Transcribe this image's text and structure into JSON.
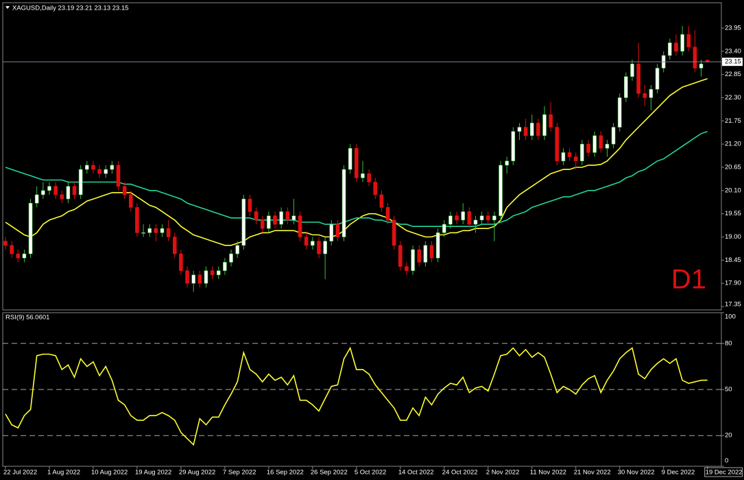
{
  "chart_data": [
    {
      "type": "candlestick",
      "title": "XAGUSD,Daily  23.19 23.21 23.13 23.15",
      "watermark": "D1",
      "x": [
        "22 Jul 2022",
        null,
        null,
        null,
        null,
        null,
        null,
        "1 Aug 2022",
        null,
        null,
        null,
        null,
        null,
        null,
        "10 Aug 2022",
        null,
        null,
        null,
        null,
        null,
        null,
        "19 Aug 2022",
        null,
        null,
        null,
        null,
        null,
        null,
        "29 Aug 2022",
        null,
        null,
        null,
        null,
        null,
        null,
        "7 Sep 2022",
        null,
        null,
        null,
        null,
        null,
        null,
        "16 Sep 2022",
        null,
        null,
        null,
        null,
        null,
        null,
        "26 Sep 2022",
        null,
        null,
        null,
        null,
        null,
        null,
        "5 Oct 2022",
        null,
        null,
        null,
        null,
        null,
        null,
        "14 Oct 2022",
        null,
        null,
        null,
        null,
        null,
        null,
        "24 Oct 2022",
        null,
        null,
        null,
        null,
        null,
        null,
        "2 Nov 2022",
        null,
        null,
        null,
        null,
        null,
        null,
        "11 Nov 2022",
        null,
        null,
        null,
        null,
        null,
        null,
        "21 Nov 2022",
        null,
        null,
        null,
        null,
        null,
        null,
        "30 Nov 2022",
        null,
        null,
        null,
        null,
        null,
        null,
        "9 Dec 2022",
        null,
        null,
        null,
        null,
        null,
        null,
        "19 Dec 2022"
      ],
      "ohlc": [
        [
          18.9,
          19.0,
          18.7,
          18.8
        ],
        [
          18.8,
          18.9,
          18.5,
          18.6
        ],
        [
          18.6,
          18.7,
          18.4,
          18.5
        ],
        [
          18.5,
          18.7,
          18.4,
          18.6
        ],
        [
          18.6,
          19.9,
          18.5,
          19.8
        ],
        [
          19.8,
          20.2,
          19.7,
          20.0
        ],
        [
          20.0,
          20.3,
          19.9,
          20.1
        ],
        [
          20.1,
          20.3,
          20.0,
          20.2
        ],
        [
          20.2,
          20.3,
          19.9,
          20.0
        ],
        [
          20.0,
          20.1,
          19.8,
          19.9
        ],
        [
          19.9,
          20.3,
          19.8,
          20.2
        ],
        [
          20.2,
          20.3,
          19.9,
          20.0
        ],
        [
          20.0,
          20.7,
          19.9,
          20.6
        ],
        [
          20.6,
          20.8,
          20.5,
          20.7
        ],
        [
          20.7,
          20.8,
          20.5,
          20.6
        ],
        [
          20.6,
          20.7,
          20.4,
          20.5
        ],
        [
          20.5,
          20.7,
          20.4,
          20.6
        ],
        [
          20.6,
          20.8,
          20.5,
          20.7
        ],
        [
          20.7,
          20.8,
          20.1,
          20.2
        ],
        [
          20.2,
          20.3,
          19.9,
          20.0
        ],
        [
          20.0,
          20.1,
          19.6,
          19.7
        ],
        [
          19.7,
          19.8,
          19.0,
          19.1
        ],
        [
          19.1,
          19.3,
          19.0,
          19.1
        ],
        [
          19.1,
          19.3,
          19.0,
          19.2
        ],
        [
          19.2,
          19.3,
          18.9,
          19.1
        ],
        [
          19.1,
          19.3,
          19.0,
          19.2
        ],
        [
          19.2,
          19.4,
          18.9,
          19.0
        ],
        [
          19.0,
          19.1,
          18.5,
          18.6
        ],
        [
          18.6,
          18.7,
          18.1,
          18.2
        ],
        [
          18.2,
          18.3,
          17.8,
          17.9
        ],
        [
          17.9,
          18.2,
          17.7,
          18.1
        ],
        [
          18.1,
          18.2,
          17.8,
          17.9
        ],
        [
          17.9,
          18.3,
          17.8,
          18.2
        ],
        [
          18.2,
          18.3,
          18.0,
          18.1
        ],
        [
          18.1,
          18.3,
          18.0,
          18.2
        ],
        [
          18.2,
          18.5,
          18.1,
          18.4
        ],
        [
          18.4,
          18.7,
          18.3,
          18.6
        ],
        [
          18.6,
          18.9,
          18.5,
          18.8
        ],
        [
          18.8,
          20.0,
          18.7,
          19.9
        ],
        [
          19.9,
          20.0,
          19.5,
          19.6
        ],
        [
          19.6,
          19.7,
          19.3,
          19.4
        ],
        [
          19.4,
          19.5,
          19.1,
          19.2
        ],
        [
          19.2,
          19.6,
          19.1,
          19.5
        ],
        [
          19.5,
          19.6,
          19.2,
          19.3
        ],
        [
          19.3,
          19.7,
          19.2,
          19.6
        ],
        [
          19.6,
          19.7,
          19.3,
          19.4
        ],
        [
          19.4,
          19.9,
          19.3,
          19.5
        ],
        [
          19.5,
          19.6,
          18.9,
          19.0
        ],
        [
          19.0,
          19.1,
          18.7,
          18.8
        ],
        [
          18.8,
          19.0,
          18.7,
          18.9
        ],
        [
          18.9,
          19.0,
          18.5,
          18.6
        ],
        [
          18.6,
          19.0,
          18.0,
          18.9
        ],
        [
          18.9,
          19.4,
          18.8,
          19.3
        ],
        [
          19.3,
          19.4,
          18.9,
          19.0
        ],
        [
          19.0,
          20.7,
          18.9,
          20.6
        ],
        [
          20.6,
          21.2,
          20.5,
          21.1
        ],
        [
          21.1,
          21.2,
          20.3,
          20.4
        ],
        [
          20.4,
          20.8,
          20.3,
          20.5
        ],
        [
          20.5,
          20.6,
          20.2,
          20.3
        ],
        [
          20.3,
          20.4,
          19.9,
          20.0
        ],
        [
          20.0,
          20.1,
          19.6,
          19.7
        ],
        [
          19.7,
          19.8,
          19.3,
          19.4
        ],
        [
          19.4,
          19.5,
          18.7,
          18.8
        ],
        [
          18.8,
          18.9,
          18.2,
          18.3
        ],
        [
          18.3,
          18.4,
          18.1,
          18.2
        ],
        [
          18.2,
          18.8,
          18.1,
          18.7
        ],
        [
          18.7,
          18.8,
          18.3,
          18.4
        ],
        [
          18.4,
          18.9,
          18.3,
          18.8
        ],
        [
          18.8,
          18.9,
          18.4,
          18.5
        ],
        [
          18.5,
          19.2,
          18.4,
          19.1
        ],
        [
          19.1,
          19.4,
          19.0,
          19.3
        ],
        [
          19.3,
          19.6,
          19.2,
          19.5
        ],
        [
          19.5,
          19.6,
          19.3,
          19.4
        ],
        [
          19.4,
          19.8,
          19.3,
          19.6
        ],
        [
          19.6,
          19.7,
          19.2,
          19.3
        ],
        [
          19.3,
          19.5,
          19.1,
          19.4
        ],
        [
          19.4,
          19.6,
          19.3,
          19.5
        ],
        [
          19.5,
          19.6,
          19.3,
          19.4
        ],
        [
          19.4,
          19.6,
          18.9,
          19.5
        ],
        [
          19.5,
          20.8,
          19.4,
          20.7
        ],
        [
          20.7,
          20.9,
          20.5,
          20.8
        ],
        [
          20.8,
          21.6,
          20.7,
          21.5
        ],
        [
          21.5,
          21.7,
          21.3,
          21.6
        ],
        [
          21.6,
          21.8,
          21.3,
          21.4
        ],
        [
          21.4,
          21.9,
          21.3,
          21.7
        ],
        [
          21.7,
          21.8,
          21.3,
          21.4
        ],
        [
          21.4,
          22.1,
          21.3,
          21.9
        ],
        [
          21.9,
          22.2,
          21.5,
          21.6
        ],
        [
          21.6,
          21.7,
          20.7,
          20.8
        ],
        [
          20.8,
          21.1,
          20.7,
          21.0
        ],
        [
          21.0,
          21.1,
          20.8,
          20.9
        ],
        [
          20.9,
          21.0,
          20.6,
          20.8
        ],
        [
          20.8,
          21.3,
          20.7,
          21.2
        ],
        [
          21.2,
          21.3,
          20.9,
          21.0
        ],
        [
          21.0,
          21.5,
          20.9,
          21.4
        ],
        [
          21.4,
          21.5,
          21.0,
          21.1
        ],
        [
          21.1,
          21.3,
          20.9,
          21.2
        ],
        [
          21.2,
          21.7,
          21.1,
          21.6
        ],
        [
          21.6,
          22.4,
          21.5,
          22.3
        ],
        [
          22.3,
          22.9,
          22.2,
          22.8
        ],
        [
          22.8,
          23.2,
          22.7,
          23.1
        ],
        [
          23.1,
          23.6,
          22.3,
          22.4
        ],
        [
          22.4,
          22.6,
          22.1,
          22.3
        ],
        [
          22.3,
          22.6,
          22.0,
          22.5
        ],
        [
          22.5,
          23.1,
          22.4,
          23.0
        ],
        [
          23.0,
          23.4,
          22.9,
          23.3
        ],
        [
          23.3,
          23.7,
          23.2,
          23.6
        ],
        [
          23.6,
          23.8,
          23.3,
          23.4
        ],
        [
          23.4,
          24.0,
          23.3,
          23.8
        ],
        [
          23.8,
          24.0,
          23.4,
          23.5
        ],
        [
          23.5,
          23.9,
          22.9,
          23.0
        ],
        [
          23.0,
          23.2,
          22.8,
          23.1
        ],
        [
          23.19,
          23.21,
          23.13,
          23.15
        ]
      ],
      "up_color": "#ffffff",
      "down_color": "#e01010",
      "up_wick_color": "#3fbf3f",
      "down_wick_color": "#e01010",
      "series": [
        {
          "color": "#ffff30",
          "values": [
            19.35,
            19.25,
            19.15,
            19.05,
            19.0,
            19.1,
            19.3,
            19.4,
            19.45,
            19.5,
            19.6,
            19.65,
            19.75,
            19.85,
            19.9,
            19.95,
            20.0,
            20.05,
            20.05,
            20.05,
            20.05,
            19.95,
            19.85,
            19.75,
            19.7,
            19.6,
            19.5,
            19.4,
            19.25,
            19.15,
            19.05,
            19.0,
            18.95,
            18.9,
            18.85,
            18.8,
            18.8,
            18.85,
            18.9,
            19.0,
            19.05,
            19.1,
            19.1,
            19.15,
            19.15,
            19.15,
            19.15,
            19.1,
            19.1,
            19.05,
            19.05,
            19.0,
            19.0,
            19.05,
            19.15,
            19.3,
            19.4,
            19.5,
            19.55,
            19.55,
            19.5,
            19.45,
            19.35,
            19.25,
            19.15,
            19.1,
            19.05,
            19.0,
            19.0,
            19.05,
            19.05,
            19.1,
            19.1,
            19.15,
            19.15,
            19.2,
            19.2,
            19.2,
            19.25,
            19.4,
            19.7,
            19.85,
            20.0,
            20.1,
            20.2,
            20.3,
            20.4,
            20.5,
            20.55,
            20.6,
            20.6,
            20.65,
            20.65,
            20.7,
            20.7,
            20.72,
            20.8,
            20.95,
            21.1,
            21.3,
            21.45,
            21.6,
            21.75,
            21.9,
            22.05,
            22.2,
            22.35,
            22.45,
            22.55,
            22.6,
            22.65,
            22.7,
            22.75
          ]
        },
        {
          "color": "#20d8a0",
          "values": [
            20.65,
            20.6,
            20.55,
            20.5,
            20.45,
            20.4,
            20.35,
            20.35,
            20.35,
            20.35,
            20.3,
            20.3,
            20.3,
            20.3,
            20.3,
            20.3,
            20.3,
            20.3,
            20.3,
            20.25,
            20.25,
            20.2,
            20.15,
            20.1,
            20.1,
            20.05,
            20.0,
            19.95,
            19.9,
            19.8,
            19.75,
            19.7,
            19.65,
            19.6,
            19.55,
            19.5,
            19.45,
            19.45,
            19.45,
            19.45,
            19.4,
            19.4,
            19.4,
            19.4,
            19.4,
            19.4,
            19.4,
            19.35,
            19.35,
            19.35,
            19.35,
            19.3,
            19.3,
            19.3,
            19.35,
            19.4,
            19.45,
            19.45,
            19.45,
            19.4,
            19.4,
            19.35,
            19.35,
            19.3,
            19.3,
            19.25,
            19.25,
            19.25,
            19.25,
            19.25,
            19.25,
            19.25,
            19.25,
            19.25,
            19.25,
            19.25,
            19.3,
            19.3,
            19.3,
            19.35,
            19.4,
            19.5,
            19.55,
            19.6,
            19.7,
            19.75,
            19.8,
            19.85,
            19.9,
            19.95,
            19.95,
            20.0,
            20.05,
            20.1,
            20.1,
            20.15,
            20.2,
            20.25,
            20.3,
            20.4,
            20.45,
            20.55,
            20.6,
            20.7,
            20.8,
            20.85,
            20.95,
            21.05,
            21.15,
            21.25,
            21.35,
            21.45,
            21.5
          ]
        }
      ],
      "current_price": 23.15,
      "ylim": [
        17.27,
        24.55
      ],
      "yticks": [
        {
          "value": 23.95,
          "label": "23.95"
        },
        {
          "value": 23.4,
          "label": "23.40"
        },
        {
          "value": 22.85,
          "label": "22.85"
        },
        {
          "value": 22.3,
          "label": "22.30"
        },
        {
          "value": 21.75,
          "label": "21.75"
        },
        {
          "value": 21.2,
          "label": "21.20"
        },
        {
          "value": 20.65,
          "label": "20.65"
        },
        {
          "value": 20.1,
          "label": "20.10"
        },
        {
          "value": 19.55,
          "label": "19.55"
        },
        {
          "value": 19.0,
          "label": "19.00"
        },
        {
          "value": 18.45,
          "label": "18.45"
        },
        {
          "value": 17.9,
          "label": "17.90"
        },
        {
          "value": 17.35,
          "label": "17.35"
        }
      ]
    },
    {
      "type": "line",
      "title": "RSI(9) 56.0601",
      "series": [
        {
          "color": "#ffff30",
          "values": [
            34,
            27,
            25,
            33,
            37,
            72,
            73,
            73,
            72,
            63,
            66,
            58,
            70,
            65,
            68,
            59,
            65,
            56,
            43,
            40,
            33,
            30,
            30,
            33,
            33,
            35,
            33,
            30,
            22,
            18,
            14,
            31,
            27,
            32,
            32,
            40,
            47,
            55,
            74,
            63,
            60,
            55,
            60,
            56,
            58,
            53,
            59,
            43,
            43,
            40,
            36,
            44,
            52,
            53,
            70,
            77,
            63,
            63,
            60,
            53,
            48,
            43,
            38,
            30,
            30,
            38,
            33,
            45,
            40,
            47,
            51,
            54,
            53,
            58,
            48,
            51,
            52,
            49,
            60,
            72,
            73,
            77,
            72,
            76,
            71,
            74,
            71,
            60,
            48,
            52,
            50,
            47,
            53,
            57,
            59,
            48,
            56,
            62,
            70,
            74,
            77,
            60,
            57,
            63,
            67,
            70,
            67,
            70,
            56,
            54,
            55,
            56,
            56.0601
          ]
        }
      ],
      "levels": [
        20,
        50,
        80
      ],
      "ylim": [
        0,
        100
      ],
      "yticks": [
        0,
        20,
        50,
        80,
        100
      ]
    }
  ]
}
